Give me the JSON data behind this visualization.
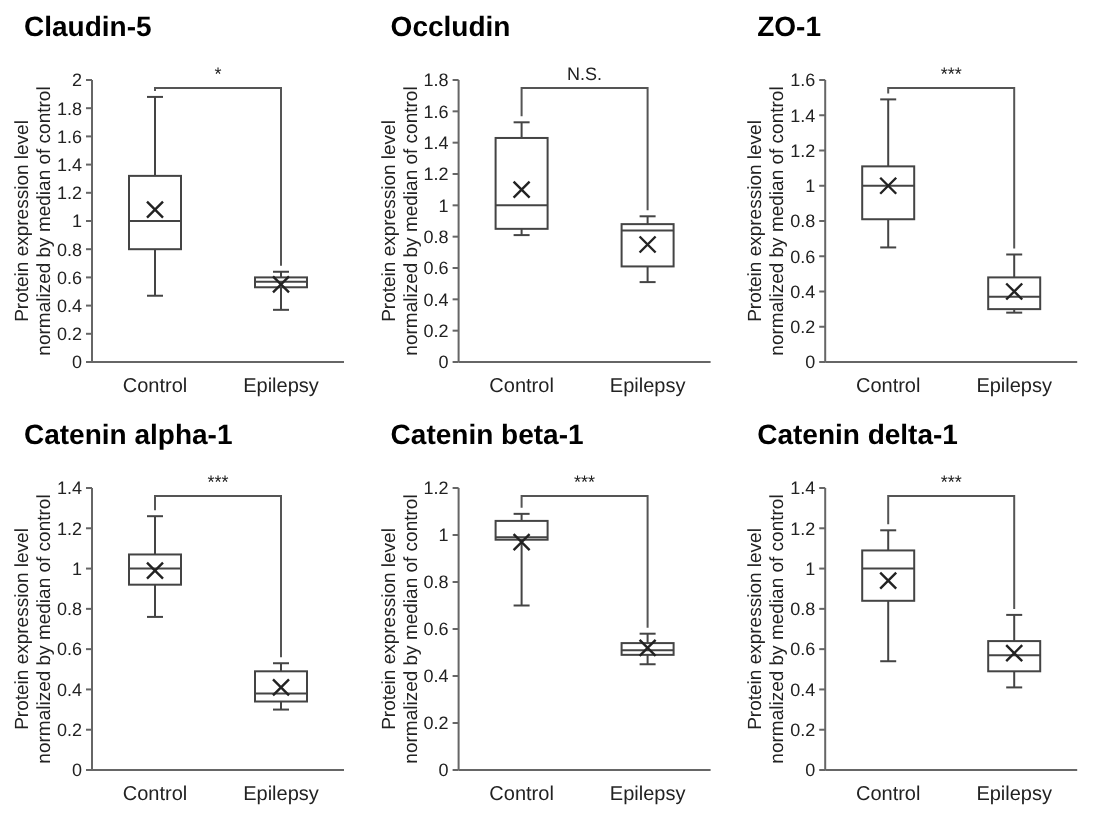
{
  "chart_data": [
    {
      "type": "box",
      "title": "Claudin-5",
      "ylabel": "Protein expression level\nnormalized by median of control",
      "categories": [
        "Control",
        "Epilepsy"
      ],
      "ylim": [
        0,
        2
      ],
      "yticks": [
        0,
        0.2,
        0.4,
        0.6,
        0.8,
        1,
        1.2,
        1.4,
        1.6,
        1.8,
        2
      ],
      "annotations": [
        "*"
      ],
      "boxes": [
        {
          "low": 0.47,
          "q1": 0.8,
          "median": 1.0,
          "q3": 1.32,
          "high": 1.88,
          "mean": 1.08
        },
        {
          "low": 0.37,
          "q1": 0.53,
          "median": 0.57,
          "q3": 0.6,
          "high": 0.64,
          "mean": 0.55
        }
      ]
    },
    {
      "type": "box",
      "title": "Occludin",
      "ylabel": "Protein expression level\nnormalized by median of control",
      "categories": [
        "Control",
        "Epilepsy"
      ],
      "ylim": [
        0,
        1.8
      ],
      "yticks": [
        0,
        0.2,
        0.4,
        0.6,
        0.8,
        1,
        1.2,
        1.4,
        1.6,
        1.8
      ],
      "annotations": [
        "N.S."
      ],
      "boxes": [
        {
          "low": 0.81,
          "q1": 0.85,
          "median": 1.0,
          "q3": 1.43,
          "high": 1.53,
          "mean": 1.1
        },
        {
          "low": 0.51,
          "q1": 0.61,
          "median": 0.84,
          "q3": 0.88,
          "high": 0.93,
          "mean": 0.75
        }
      ]
    },
    {
      "type": "box",
      "title": "ZO-1",
      "ylabel": "Protein expression level\nnormalized by median of control",
      "categories": [
        "Control",
        "Epilepsy"
      ],
      "ylim": [
        0,
        1.6
      ],
      "yticks": [
        0,
        0.2,
        0.4,
        0.6,
        0.8,
        1,
        1.2,
        1.4,
        1.6
      ],
      "annotations": [
        "***"
      ],
      "boxes": [
        {
          "low": 0.65,
          "q1": 0.81,
          "median": 1.0,
          "q3": 1.11,
          "high": 1.49,
          "mean": 1.0
        },
        {
          "low": 0.28,
          "q1": 0.3,
          "median": 0.37,
          "q3": 0.48,
          "high": 0.61,
          "mean": 0.4
        }
      ]
    },
    {
      "type": "box",
      "title": "Catenin alpha-1",
      "ylabel": "Protein expression level\nnormalized by median of control",
      "categories": [
        "Control",
        "Epilepsy"
      ],
      "ylim": [
        0,
        1.4
      ],
      "yticks": [
        0,
        0.2,
        0.4,
        0.6,
        0.8,
        1,
        1.2,
        1.4
      ],
      "annotations": [
        "***"
      ],
      "boxes": [
        {
          "low": 0.76,
          "q1": 0.92,
          "median": 1.0,
          "q3": 1.07,
          "high": 1.26,
          "mean": 0.99
        },
        {
          "low": 0.3,
          "q1": 0.34,
          "median": 0.38,
          "q3": 0.49,
          "high": 0.53,
          "mean": 0.41
        }
      ]
    },
    {
      "type": "box",
      "title": "Catenin beta-1",
      "ylabel": "Protein expression level\nnormalized by median of control",
      "categories": [
        "Control",
        "Epilepsy"
      ],
      "ylim": [
        0,
        1.2
      ],
      "yticks": [
        0,
        0.2,
        0.4,
        0.6,
        0.8,
        1,
        1.2
      ],
      "annotations": [
        "***"
      ],
      "boxes": [
        {
          "low": 0.7,
          "q1": 0.98,
          "median": 0.99,
          "q3": 1.06,
          "high": 1.09,
          "mean": 0.97
        },
        {
          "low": 0.45,
          "q1": 0.49,
          "median": 0.51,
          "q3": 0.54,
          "high": 0.58,
          "mean": 0.52
        }
      ]
    },
    {
      "type": "box",
      "title": "Catenin delta-1",
      "ylabel": "Protein expression level\nnormalized by median of control",
      "categories": [
        "Control",
        "Epilepsy"
      ],
      "ylim": [
        0,
        1.4
      ],
      "yticks": [
        0,
        0.2,
        0.4,
        0.6,
        0.8,
        1,
        1.2,
        1.4
      ],
      "annotations": [
        "***"
      ],
      "boxes": [
        {
          "low": 0.54,
          "q1": 0.84,
          "median": 1.0,
          "q3": 1.09,
          "high": 1.19,
          "mean": 0.94
        },
        {
          "low": 0.41,
          "q1": 0.49,
          "median": 0.57,
          "q3": 0.64,
          "high": 0.77,
          "mean": 0.58
        }
      ]
    }
  ]
}
